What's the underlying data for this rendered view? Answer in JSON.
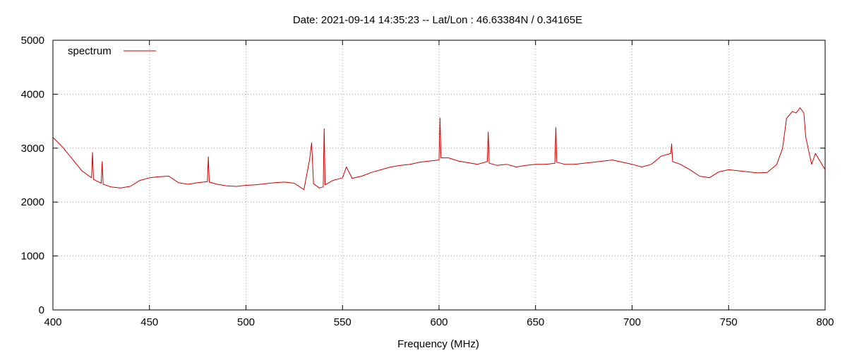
{
  "chart_data": {
    "type": "line",
    "title": "Date: 2021-09-14 14:35:23  --  Lat/Lon : 46.63384N / 0.34165E",
    "xlabel": "Frequency (MHz)",
    "ylabel": "",
    "xlim": [
      400,
      800
    ],
    "ylim": [
      0,
      5000
    ],
    "xticks": [
      400,
      450,
      500,
      550,
      600,
      650,
      700,
      750,
      800
    ],
    "yticks": [
      0,
      1000,
      2000,
      3000,
      4000,
      5000
    ],
    "grid": true,
    "legend_position": "top-left",
    "series": [
      {
        "name": "spectrum",
        "color": "#cc0000",
        "x": [
          400,
          405,
          410,
          415,
          420,
          420.5,
          421,
          425,
          425.5,
          426,
          430,
          435,
          440,
          445,
          450,
          455,
          460,
          465,
          470,
          475,
          480,
          480.5,
          481,
          485,
          490,
          495,
          500,
          505,
          510,
          515,
          520,
          525,
          530,
          533,
          534,
          535,
          538,
          540,
          540.5,
          541,
          545,
          550,
          552,
          555,
          560,
          565,
          570,
          575,
          580,
          585,
          590,
          595,
          600,
          600.5,
          601,
          605,
          610,
          615,
          620,
          625,
          625.5,
          626,
          630,
          635,
          640,
          645,
          650,
          655,
          660,
          660.5,
          661,
          665,
          670,
          675,
          680,
          685,
          690,
          695,
          700,
          705,
          710,
          715,
          720,
          720.5,
          721,
          725,
          730,
          735,
          740,
          745,
          750,
          755,
          760,
          765,
          770,
          775,
          778,
          780,
          783,
          785,
          787,
          789,
          790,
          793,
          795,
          800
        ],
        "y": [
          3200,
          3020,
          2800,
          2580,
          2450,
          2920,
          2420,
          2350,
          2750,
          2330,
          2280,
          2260,
          2290,
          2400,
          2450,
          2470,
          2480,
          2360,
          2330,
          2360,
          2380,
          2840,
          2370,
          2330,
          2300,
          2290,
          2310,
          2320,
          2340,
          2360,
          2370,
          2350,
          2230,
          2800,
          3100,
          2340,
          2260,
          2280,
          3360,
          2320,
          2400,
          2450,
          2650,
          2440,
          2480,
          2550,
          2600,
          2650,
          2680,
          2700,
          2740,
          2760,
          2780,
          3560,
          2820,
          2820,
          2760,
          2730,
          2700,
          2750,
          3300,
          2720,
          2680,
          2700,
          2650,
          2680,
          2700,
          2700,
          2720,
          3380,
          2740,
          2700,
          2700,
          2720,
          2740,
          2760,
          2780,
          2740,
          2700,
          2650,
          2700,
          2850,
          2900,
          3080,
          2750,
          2700,
          2600,
          2480,
          2450,
          2560,
          2600,
          2580,
          2560,
          2540,
          2550,
          2700,
          3000,
          3550,
          3680,
          3650,
          3750,
          3650,
          3200,
          2700,
          2900,
          2600
        ]
      }
    ]
  }
}
